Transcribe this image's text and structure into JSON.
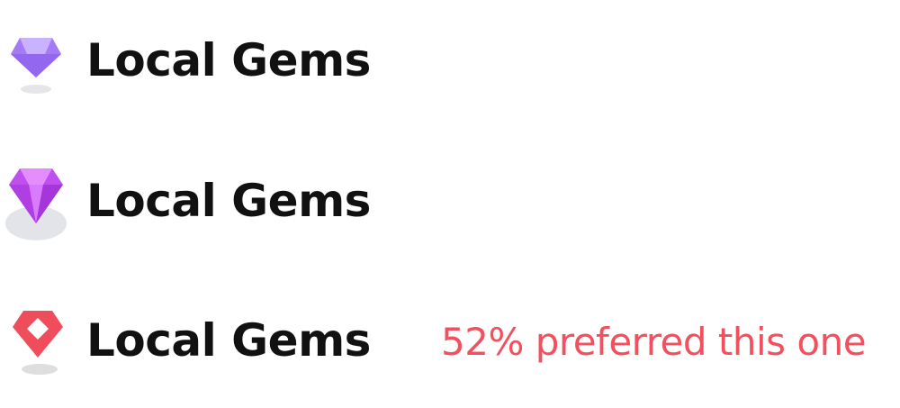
{
  "variants": [
    {
      "brand_name": "Local Gems",
      "icon": "gem-icon-light-purple",
      "colors": {
        "gem": "#a47bf5",
        "gem_light": "#c9b2ff",
        "shadow": "#e6e6ea"
      }
    },
    {
      "brand_name": "Local Gems",
      "icon": "gem-icon-magenta",
      "colors": {
        "gem": "#c04ff0",
        "gem_light": "#e58cff",
        "shadow": "#e3e3ea"
      }
    },
    {
      "brand_name": "Local Gems",
      "icon": "gem-pin-icon-red",
      "colors": {
        "gem": "#ef4d5c",
        "gem_light": "#ff7a86",
        "shadow": "#dedede"
      },
      "note": "52% preferred this one"
    }
  ],
  "colors": {
    "text": "#111111",
    "accent": "#f2505e"
  }
}
